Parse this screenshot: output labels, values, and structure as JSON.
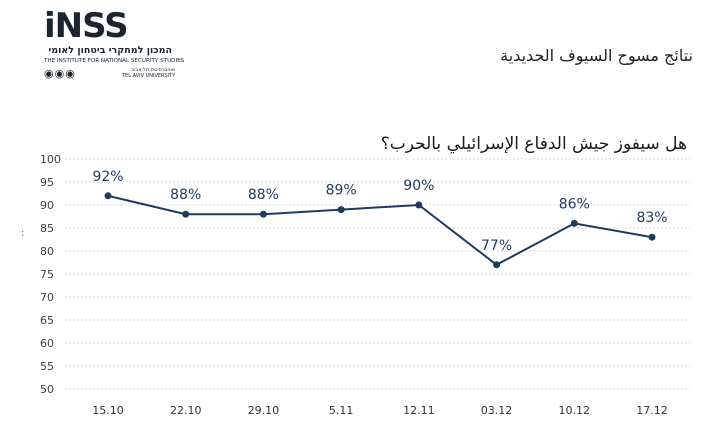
{
  "logo": {
    "wordmark": "iNSS",
    "hebrew": "המכון למחקרי ביטחון לאומי",
    "english": "THE INSTITUTE FOR NATIONAL SECURITY STUDIES",
    "university_hebrew": "אוניברסיטת תל אביב",
    "university_english": "TEL AVIV UNIVERSITY",
    "symbols": "◉◉◉"
  },
  "header": {
    "title": "نتائج مسوح السيوف الحديدية"
  },
  "side_mark": ":",
  "chart_data": {
    "type": "line",
    "title": "هل سيفوز جيش الدفاع الإسرائيلي بالحرب؟",
    "categories": [
      "15.10",
      "22.10",
      "29.10",
      "5.11",
      "12.11",
      "03.12",
      "10.12",
      "17.12"
    ],
    "values": [
      92,
      88,
      88,
      89,
      90,
      77,
      86,
      83
    ],
    "data_labels": [
      "92%",
      "88%",
      "88%",
      "89%",
      "90%",
      "77%",
      "86%",
      "83%"
    ],
    "ylim": [
      50,
      100
    ],
    "yticks": [
      50,
      55,
      60,
      65,
      70,
      75,
      80,
      85,
      90,
      95,
      100
    ],
    "xlabel": "",
    "ylabel": "",
    "grid": true,
    "color": "#1f3a5c"
  }
}
